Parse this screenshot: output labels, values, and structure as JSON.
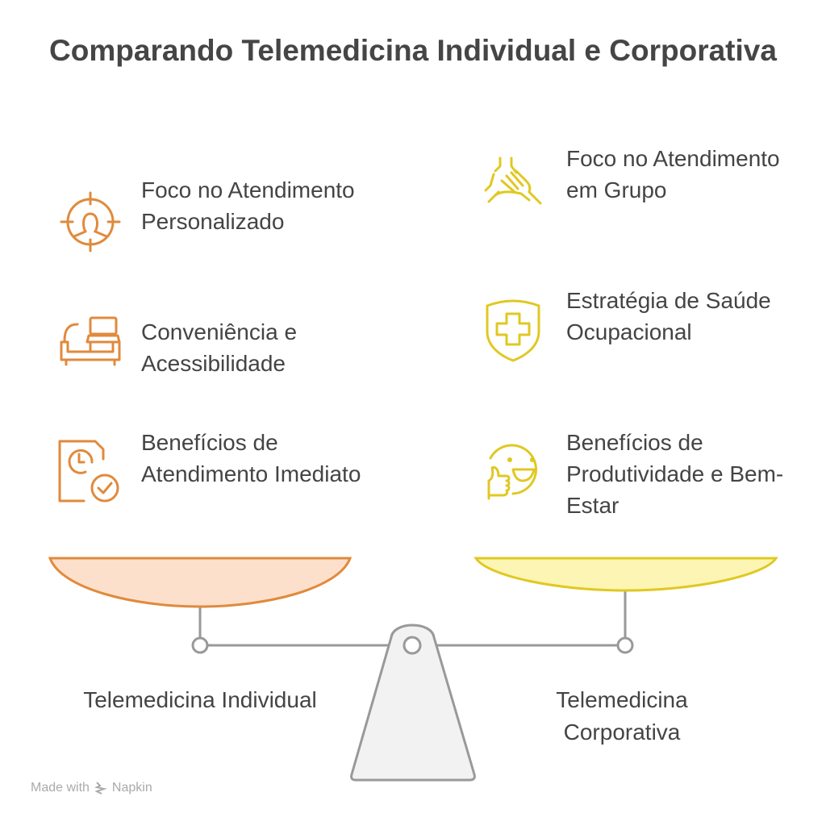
{
  "title": "Comparando Telemedicina Individual e Corporativa",
  "left": {
    "label": "Telemedicina Individual",
    "color": "#e08a3c",
    "fill": "#fde0cb",
    "items": [
      {
        "text": "Foco no Atendimento Personalizado",
        "icon": "target-person-icon"
      },
      {
        "text": "Conveniência e Acessibilidade",
        "icon": "sofa-laptop-icon"
      },
      {
        "text": "Benefícios de Atendimento Imediato",
        "icon": "document-clock-check-icon"
      }
    ]
  },
  "right": {
    "label": "Telemedicina Corporativa",
    "color": "#e0c822",
    "fill": "#fdf5b3",
    "items": [
      {
        "text": "Foco no Atendimento em Grupo",
        "icon": "hands-together-icon"
      },
      {
        "text": "Estratégia de Saúde Ocupacional",
        "icon": "shield-cross-icon"
      },
      {
        "text": "Benefícios de Produtividade e Bem-Estar",
        "icon": "smiley-thumbs-up-icon"
      }
    ]
  },
  "footer": {
    "made_with": "Made with",
    "brand": "Napkin"
  }
}
